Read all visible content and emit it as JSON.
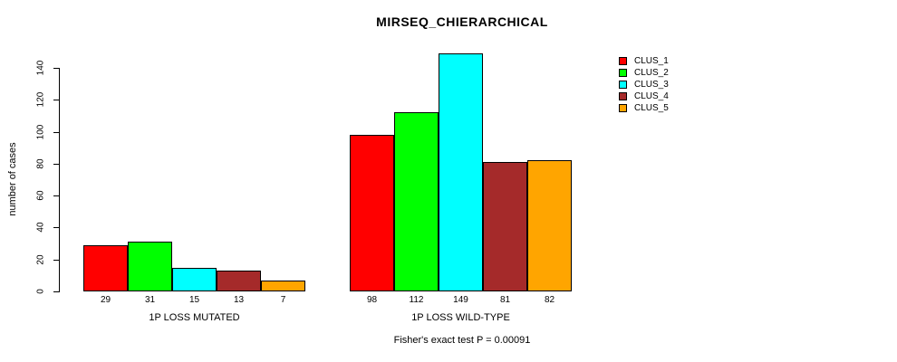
{
  "chart_data": {
    "type": "bar",
    "title": "MIRSEQ_CHIERARCHICAL",
    "ylabel": "number of cases",
    "ylim": [
      0,
      140
    ],
    "yticks": [
      0,
      20,
      40,
      60,
      80,
      100,
      120,
      140
    ],
    "grid": false,
    "legend_position": "top-right",
    "series_names": [
      "CLUS_1",
      "CLUS_2",
      "CLUS_3",
      "CLUS_4",
      "CLUS_5"
    ],
    "colors": [
      "#ff0000",
      "#00ff00",
      "#00ffff",
      "#a52a2a",
      "#ffa500"
    ],
    "groups": [
      {
        "label": "1P LOSS MUTATED",
        "values": [
          29,
          31,
          15,
          13,
          7
        ]
      },
      {
        "label": "1P LOSS WILD-TYPE",
        "values": [
          98,
          112,
          149,
          81,
          82
        ]
      }
    ],
    "footer": "Fisher's exact test P = 0.00091"
  },
  "legend": {
    "items": [
      {
        "label": "CLUS_1",
        "color": "#ff0000"
      },
      {
        "label": "CLUS_2",
        "color": "#00ff00"
      },
      {
        "label": "CLUS_3",
        "color": "#00ffff"
      },
      {
        "label": "CLUS_4",
        "color": "#a52a2a"
      },
      {
        "label": "CLUS_5",
        "color": "#ffa500"
      }
    ]
  }
}
